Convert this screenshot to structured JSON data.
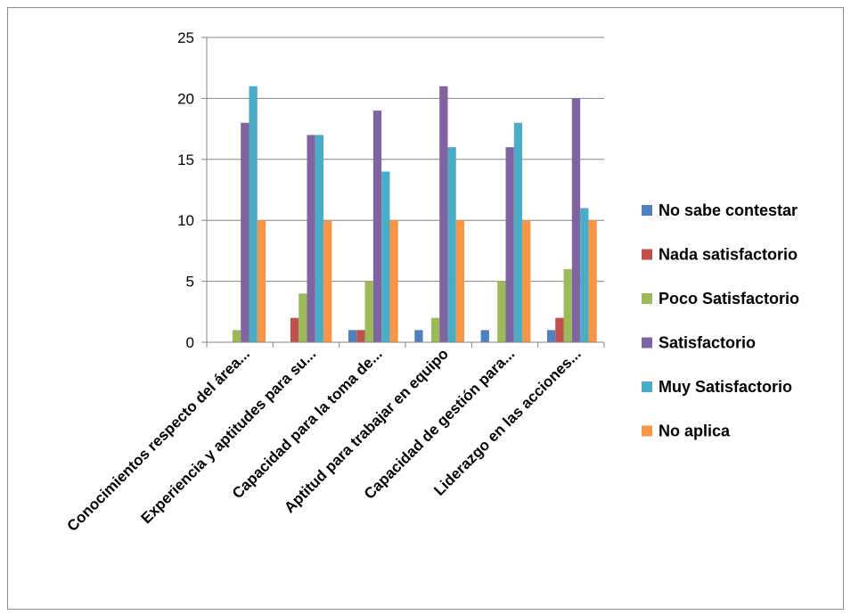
{
  "chart_data": {
    "type": "bar",
    "title": "",
    "xlabel": "",
    "ylabel": "",
    "ylim": [
      0,
      25
    ],
    "yticks": [
      0,
      5,
      10,
      15,
      20,
      25
    ],
    "grid": true,
    "legend_position": "right",
    "categories": [
      "Conocimientos respecto del área...",
      "Experiencia y aptitudes para su...",
      "Capacidad para la toma de...",
      "Aptitud para trabajar en equipo",
      "Capacidad de gestión para...",
      "Liderazgo en las acciones..."
    ],
    "series": [
      {
        "name": "No sabe contestar",
        "color": "#4F81BD",
        "values": [
          0,
          0,
          1,
          1,
          1,
          1
        ]
      },
      {
        "name": "Nada satisfactorio",
        "color": "#C0504D",
        "values": [
          0,
          2,
          1,
          0,
          0,
          2
        ]
      },
      {
        "name": "Poco Satisfactorio",
        "color": "#9BBB59",
        "values": [
          1,
          4,
          5,
          2,
          5,
          6
        ]
      },
      {
        "name": "Satisfactorio",
        "color": "#8064A2",
        "values": [
          18,
          17,
          19,
          21,
          16,
          20
        ]
      },
      {
        "name": "Muy Satisfactorio",
        "color": "#4BACC6",
        "values": [
          21,
          17,
          14,
          16,
          18,
          11
        ]
      },
      {
        "name": "No aplica",
        "color": "#F79646",
        "values": [
          10,
          10,
          10,
          10,
          10,
          10
        ]
      }
    ]
  }
}
